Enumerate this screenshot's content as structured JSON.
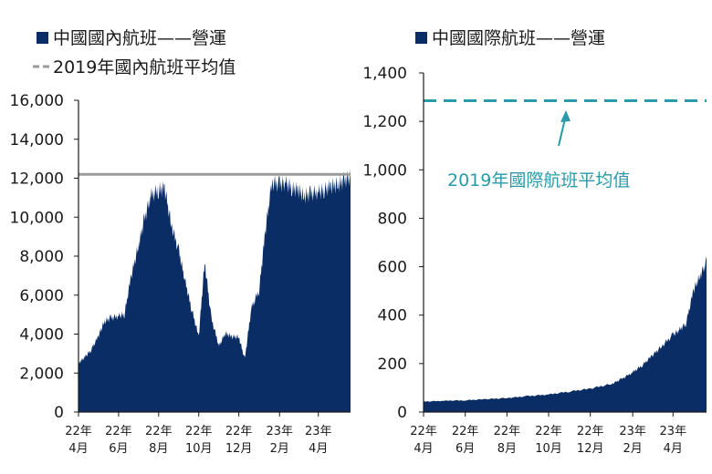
{
  "colors": {
    "bar": "#0a2d66",
    "domestic_avg_line": "#9a9a9a",
    "international_avg_line": "#2a9aa8",
    "axis": "#1a1a1a"
  },
  "chart_data": [
    {
      "type": "area",
      "legend": [
        {
          "label": "中國國內航班——營運",
          "marker": "square"
        },
        {
          "label": "2019年國內航班平均值",
          "marker": "dashed-line"
        }
      ],
      "ylim": [
        0,
        16000
      ],
      "yticks": [
        "16,000",
        "14,000",
        "12,000",
        "10,000",
        "8,000",
        "6,000",
        "4,000",
        "2,000",
        "0"
      ],
      "ytick_values": [
        16000,
        14000,
        12000,
        10000,
        8000,
        6000,
        4000,
        2000,
        0
      ],
      "x_range": [
        "2022-04-01",
        "2023-05-20"
      ],
      "xtick_dates": [
        "2022-04-01",
        "2022-06-01",
        "2022-08-01",
        "2022-10-01",
        "2022-12-01",
        "2023-02-01",
        "2023-04-01"
      ],
      "xticks": [
        {
          "year": "22年",
          "month": "4月"
        },
        {
          "year": "22年",
          "month": "6月"
        },
        {
          "year": "22年",
          "month": "8月"
        },
        {
          "year": "22年",
          "month": "10月"
        },
        {
          "year": "22年",
          "month": "12月"
        },
        {
          "year": "23年",
          "month": "2月"
        },
        {
          "year": "23年",
          "month": "4月"
        }
      ],
      "reference_value": 12200,
      "dates": [
        "2022-04-01",
        "2022-04-10",
        "2022-04-20",
        "2022-05-01",
        "2022-05-10",
        "2022-05-20",
        "2022-06-01",
        "2022-06-10",
        "2022-06-20",
        "2022-07-01",
        "2022-07-10",
        "2022-07-20",
        "2022-08-01",
        "2022-08-10",
        "2022-08-20",
        "2022-09-01",
        "2022-09-10",
        "2022-09-20",
        "2022-10-01",
        "2022-10-10",
        "2022-10-20",
        "2022-11-01",
        "2022-11-10",
        "2022-11-20",
        "2022-12-01",
        "2022-12-10",
        "2022-12-20",
        "2023-01-01",
        "2023-01-10",
        "2023-01-20",
        "2023-02-01",
        "2023-02-10",
        "2023-02-20",
        "2023-03-01",
        "2023-03-10",
        "2023-03-20",
        "2023-04-01",
        "2023-04-10",
        "2023-04-20",
        "2023-05-01",
        "2023-05-10",
        "2023-05-20"
      ],
      "values": [
        2600,
        2900,
        3300,
        4000,
        4800,
        5000,
        5100,
        5200,
        7200,
        8800,
        10200,
        11500,
        11800,
        11900,
        10000,
        8500,
        7000,
        5500,
        4000,
        8000,
        5000,
        3500,
        4200,
        4000,
        4000,
        2800,
        5500,
        6500,
        9500,
        12200,
        12100,
        12200,
        11900,
        11800,
        11500,
        11600,
        11700,
        11800,
        12000,
        12100,
        12300,
        12500
      ]
    },
    {
      "type": "area",
      "legend": [
        {
          "label": "中國國際航班——營運",
          "marker": "square"
        }
      ],
      "ylim": [
        0,
        1400
      ],
      "yticks": [
        "1,400",
        "1,200",
        "1,000",
        "800",
        "600",
        "400",
        "200",
        "0"
      ],
      "ytick_values": [
        1400,
        1200,
        1000,
        800,
        600,
        400,
        200,
        0
      ],
      "x_range": [
        "2022-04-01",
        "2023-05-20"
      ],
      "xtick_dates": [
        "2022-04-01",
        "2022-06-01",
        "2022-08-01",
        "2022-10-01",
        "2022-12-01",
        "2023-02-01",
        "2023-04-01"
      ],
      "xticks": [
        {
          "year": "22年",
          "month": "4月"
        },
        {
          "year": "22年",
          "month": "6月"
        },
        {
          "year": "22年",
          "month": "8月"
        },
        {
          "year": "22年",
          "month": "10月"
        },
        {
          "year": "22年",
          "month": "12月"
        },
        {
          "year": "23年",
          "month": "2月"
        },
        {
          "year": "23年",
          "month": "4月"
        }
      ],
      "reference_value": 1285,
      "annotation": "2019年國際航班平均值",
      "dates": [
        "2022-04-01",
        "2022-05-01",
        "2022-06-01",
        "2022-07-01",
        "2022-08-01",
        "2022-09-01",
        "2022-10-01",
        "2022-11-01",
        "2022-12-01",
        "2023-01-01",
        "2023-01-15",
        "2023-02-01",
        "2023-02-15",
        "2023-03-01",
        "2023-03-15",
        "2023-04-01",
        "2023-04-10",
        "2023-04-20",
        "2023-05-01",
        "2023-05-10",
        "2023-05-20"
      ],
      "values": [
        45,
        48,
        50,
        55,
        60,
        68,
        75,
        88,
        100,
        120,
        140,
        170,
        200,
        240,
        280,
        330,
        350,
        380,
        520,
        580,
        640
      ]
    }
  ]
}
